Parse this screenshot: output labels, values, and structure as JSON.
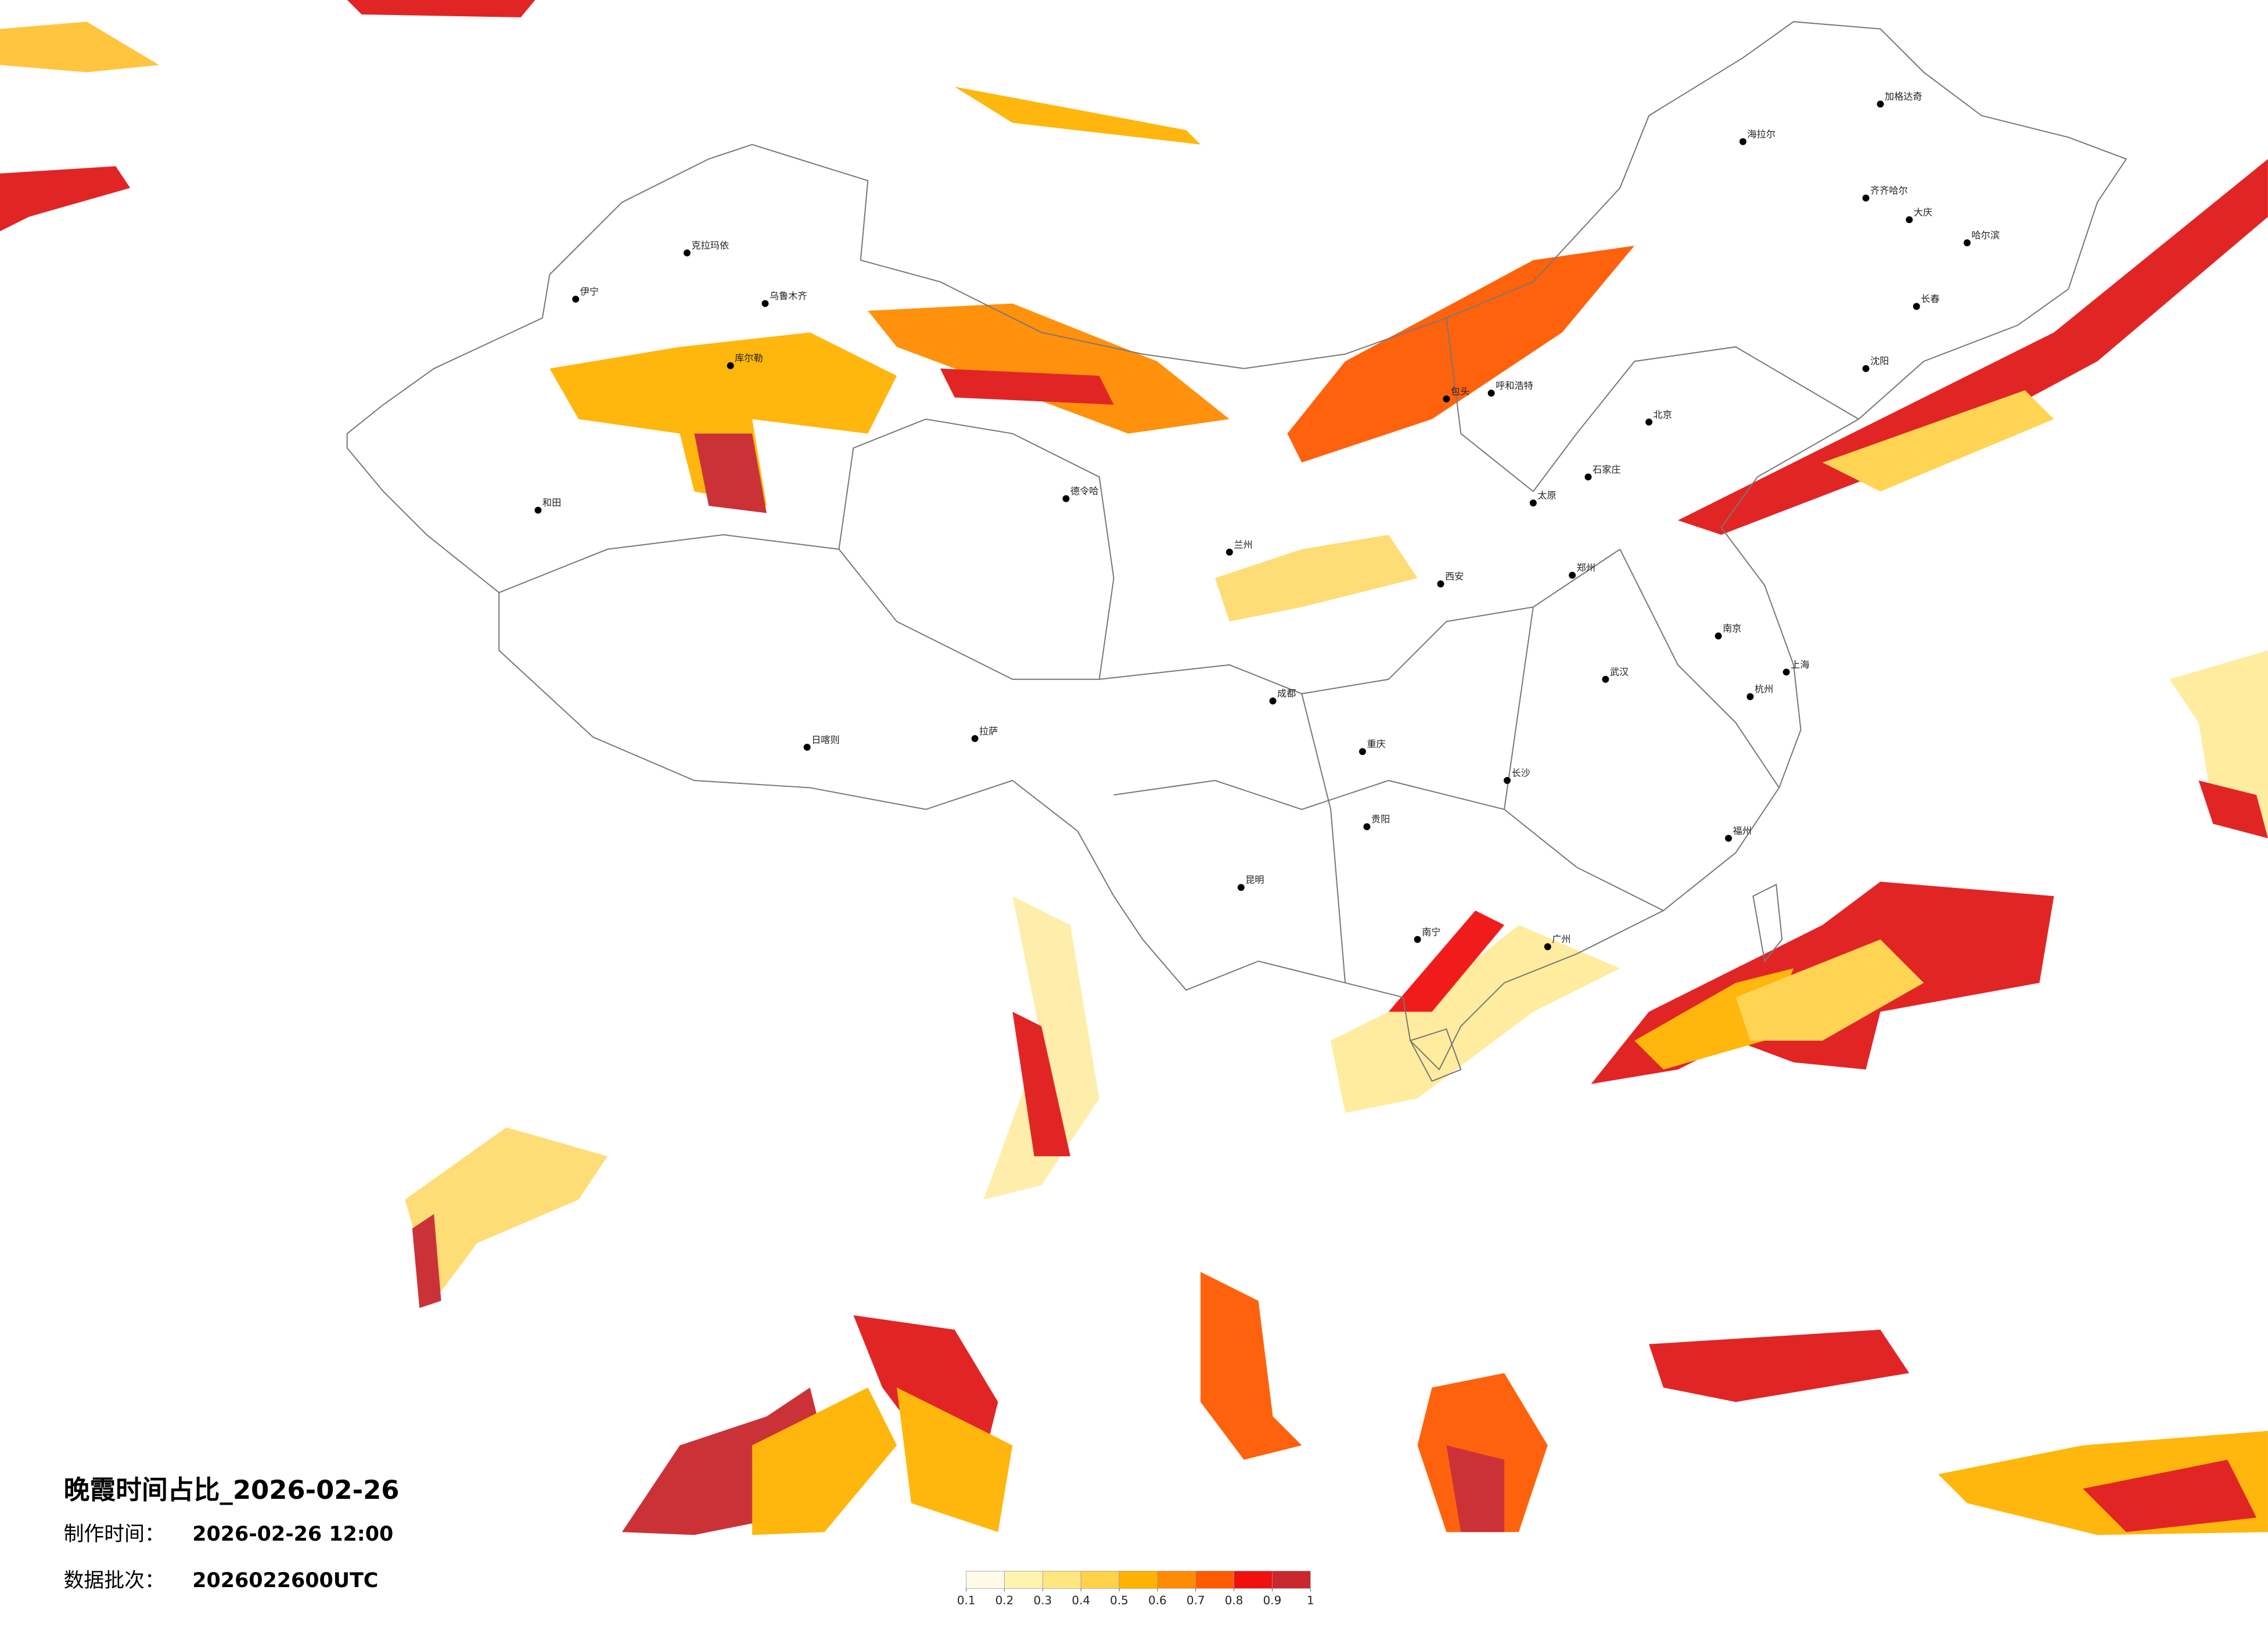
{
  "title": "晚霞时间占比_2026-02-26",
  "info": [
    {
      "label": "制作时间：",
      "value": "2026-02-26 12:00"
    },
    {
      "label": "数据批次：",
      "value": "2026022600UTC"
    }
  ],
  "legend": {
    "colors": [
      "#fffbe8",
      "#fff3b0",
      "#ffe680",
      "#ffd24a",
      "#ffb300",
      "#ff8c00",
      "#ff5a00",
      "#f01010",
      "#c8282e"
    ],
    "ticks": [
      0.1,
      0.2,
      0.3,
      0.4,
      0.5,
      0.6,
      0.7,
      0.8,
      0.9,
      1
    ]
  },
  "cities": [
    "克拉玛依",
    "乌鲁木齐",
    "伊宁",
    "库尔勒",
    "和田",
    "德令哈",
    "拉萨",
    "日喀则",
    "呼和浩特",
    "包头",
    "北京",
    "石家庄",
    "太原",
    "郑州",
    "西安",
    "兰州",
    "成都",
    "重庆",
    "贵阳",
    "昆明",
    "南宁",
    "广州",
    "长沙",
    "武汉",
    "南京",
    "上海",
    "杭州",
    "福州",
    "哈尔滨",
    "长春",
    "沈阳",
    "海拉尔",
    "加格达奇",
    "齐齐哈尔",
    "大庆"
  ]
}
